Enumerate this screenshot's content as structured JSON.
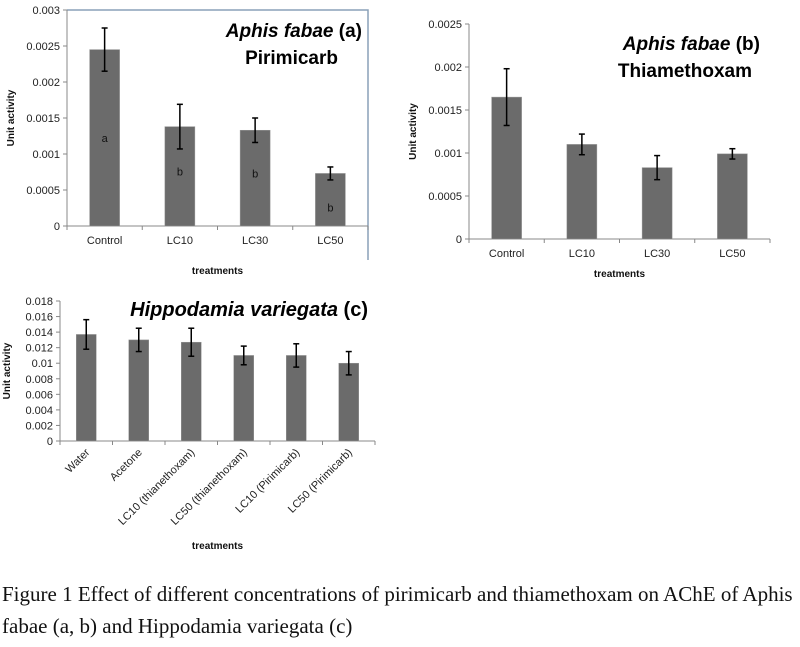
{
  "chart_data": [
    {
      "type": "bar",
      "title": "Aphis fabae",
      "panel": "(a)",
      "subtitle": "Pirimicarb",
      "xlabel": "treatments",
      "ylabel": "Unit activity",
      "ylim": [
        0,
        0.003
      ],
      "yticks": [
        "0",
        "0.0005",
        "0.001",
        "0.0015",
        "0.002",
        "0.0025",
        "0.003"
      ],
      "categories": [
        "Control",
        "LC10",
        "LC30",
        "LC50"
      ],
      "values": [
        0.00245,
        0.00138,
        0.00133,
        0.00073
      ],
      "errors": [
        0.0003,
        0.00031,
        0.00017,
        9e-05
      ],
      "annotations": [
        "a",
        "b",
        "b",
        "b"
      ],
      "bar_color": "#6b6b6b"
    },
    {
      "type": "bar",
      "title": "Aphis fabae",
      "panel": "(b)",
      "subtitle": "Thiamethoxam",
      "xlabel": "treatments",
      "ylabel": "Unit activity",
      "ylim": [
        0,
        0.0025
      ],
      "yticks": [
        "0",
        "0.0005",
        "0.001",
        "0.0015",
        "0.002",
        "0.0025"
      ],
      "categories": [
        "Control",
        "LC10",
        "LC30",
        "LC50"
      ],
      "values": [
        0.00165,
        0.0011,
        0.00083,
        0.00099
      ],
      "errors": [
        0.00033,
        0.00012,
        0.00014,
        6e-05
      ],
      "annotations": [],
      "bar_color": "#6b6b6b"
    },
    {
      "type": "bar",
      "title": "Hippodamia variegata",
      "panel": "(c)",
      "subtitle": "",
      "xlabel": "treatments",
      "ylabel": "Unit activity",
      "ylim": [
        0,
        0.018
      ],
      "yticks": [
        "0",
        "0.002",
        "0.004",
        "0.006",
        "0.008",
        "0.01",
        "0.012",
        "0.014",
        "0.016",
        "0.018"
      ],
      "categories": [
        "Water",
        "Acetone",
        "LC10 (thianethoxam)",
        "LC50 (thianethoxam)",
        "LC10 (Pirimicarb)",
        "LC50  (Pirimicarb)"
      ],
      "values": [
        0.0137,
        0.013,
        0.0127,
        0.011,
        0.011,
        0.01
      ],
      "errors": [
        0.0019,
        0.0015,
        0.0018,
        0.0012,
        0.0015,
        0.0015
      ],
      "annotations": [],
      "bar_color": "#6b6b6b"
    }
  ],
  "caption": "Figure 1 Effect of different concentrations of pirimicarb and thiamethoxam on AChE of Aphis fabae (a, b) and Hippodamia variegata (c)"
}
